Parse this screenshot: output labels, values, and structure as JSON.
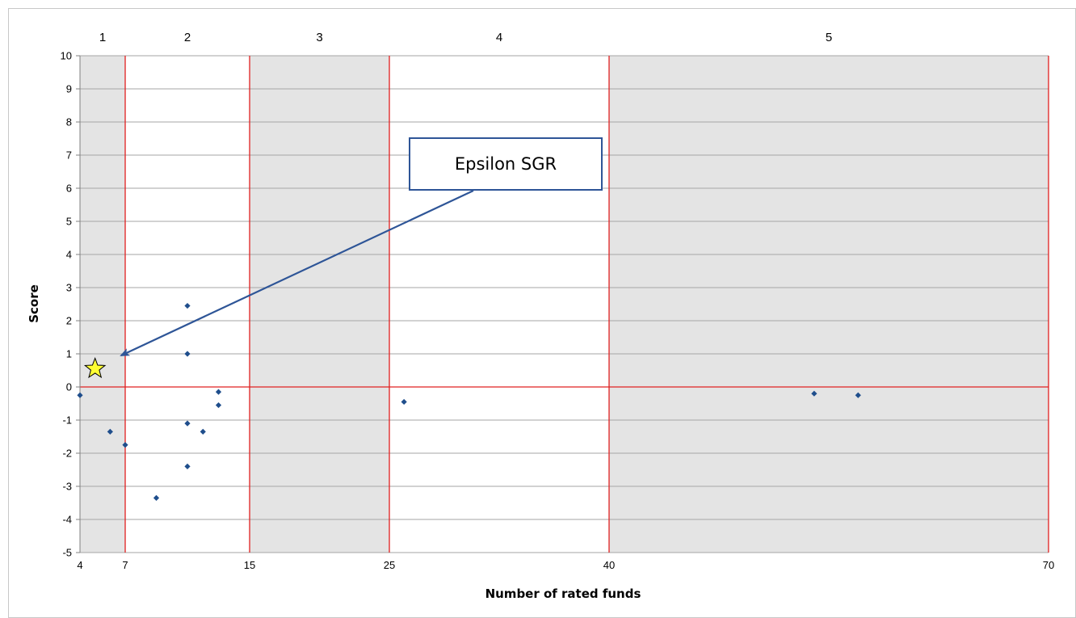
{
  "chart_data": {
    "type": "scatter",
    "xlabel": "Number of rated funds",
    "ylabel": "Score",
    "ylim": [
      -5,
      10
    ],
    "y_ticks": [
      10,
      9,
      8,
      7,
      6,
      5,
      4,
      3,
      2,
      1,
      0,
      -1,
      -2,
      -3,
      -4,
      -5
    ],
    "x_ticks": [
      4,
      7,
      15,
      25,
      40,
      70
    ],
    "x_scale": "piecewise: class boundaries 4, 7, 15, 25, 40, 70 drawn as bands of varying width",
    "class_bands": [
      {
        "label": "1",
        "from": 4,
        "to": 7,
        "shaded": true
      },
      {
        "label": "2",
        "from": 7,
        "to": 15,
        "shaded": false
      },
      {
        "label": "3",
        "from": 15,
        "to": 25,
        "shaded": true
      },
      {
        "label": "4",
        "from": 25,
        "to": 40,
        "shaded": false
      },
      {
        "label": "5",
        "from": 40,
        "to": 70,
        "shaded": true
      }
    ],
    "grid": true,
    "points": [
      {
        "x": 4,
        "y": -0.25
      },
      {
        "x": 6,
        "y": -1.35
      },
      {
        "x": 7,
        "y": -1.75
      },
      {
        "x": 9,
        "y": -3.35
      },
      {
        "x": 11,
        "y": 2.45
      },
      {
        "x": 11,
        "y": 1.0
      },
      {
        "x": 11,
        "y": -1.1
      },
      {
        "x": 11,
        "y": -2.4
      },
      {
        "x": 12,
        "y": -1.35
      },
      {
        "x": 13,
        "y": -0.15
      },
      {
        "x": 13,
        "y": -0.55
      },
      {
        "x": 26,
        "y": -0.45
      },
      {
        "x": 54,
        "y": -0.2
      },
      {
        "x": 57,
        "y": -0.25
      }
    ],
    "highlight": {
      "x": 5,
      "y": 0.55,
      "marker": "star",
      "label": "Epsilon SGR"
    },
    "colors": {
      "point": "#1f4e8c",
      "boundary_line": "#e02020",
      "shaded_band": "#e4e4e4",
      "gridline": "#a6a6a6",
      "callout_border": "#2e5597",
      "star_fill": "#ffff33"
    }
  }
}
